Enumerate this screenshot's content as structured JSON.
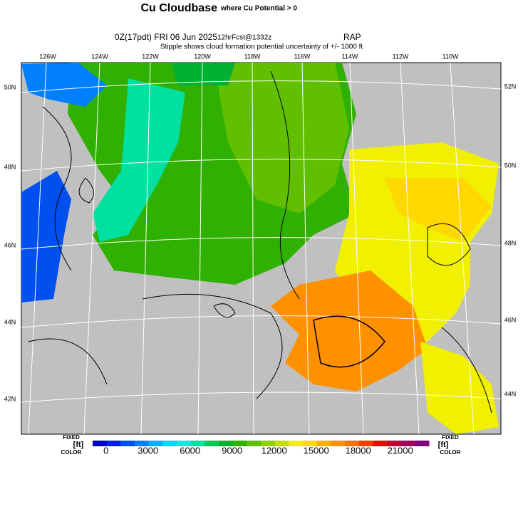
{
  "header": {
    "title": "Cu Cloudbase",
    "title_note": "where Cu Potential > 0",
    "valid": "0Z(17pdt) FRI 06 Jun 2025",
    "forecast": "12hrFcst@1332z",
    "model": "RAP",
    "stipple_note": "Stipple shows cloud formation potential uncertainty of +/- 1000 ft"
  },
  "map": {
    "lon_labels": [
      "126W",
      "124W",
      "122W",
      "120W",
      "118W",
      "116W",
      "114W",
      "112W",
      "110W"
    ],
    "lat_labels_left": [
      "50N",
      "48N",
      "46N",
      "44N",
      "42N"
    ],
    "lat_labels_right": [
      "52N",
      "50N",
      "48N",
      "46N",
      "44N"
    ]
  },
  "colorbar": {
    "left": {
      "fixed": "FIXED",
      "unit": "[ft]",
      "color": "COLOR"
    },
    "right": {
      "fixed": "FIXED",
      "unit": "[ft]",
      "color": "COLOR"
    },
    "labels": [
      "0",
      "3000",
      "6000",
      "9000",
      "12000",
      "15000",
      "18000",
      "21000"
    ],
    "colors": [
      "#0000c8",
      "#0020e0",
      "#0050f0",
      "#0080ff",
      "#00b0ff",
      "#00d8ff",
      "#00f0e0",
      "#00e0a0",
      "#00c850",
      "#00b030",
      "#30b000",
      "#60c000",
      "#90d000",
      "#c0e000",
      "#f0f000",
      "#ffd800",
      "#ffb000",
      "#ff9000",
      "#ff7000",
      "#f04000",
      "#e01000",
      "#c00030",
      "#a00060",
      "#800080"
    ]
  }
}
